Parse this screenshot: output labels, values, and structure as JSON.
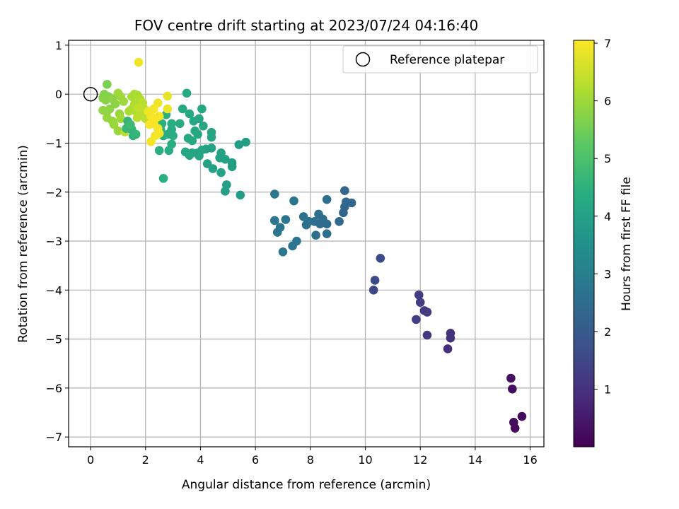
{
  "chart_data": {
    "type": "scatter",
    "title": "FOV centre drift starting at 2023/07/24 04:16:40",
    "xlabel": "Angular distance from reference (arcmin)",
    "ylabel": "Rotation from reference (arcmin)",
    "xlim": [
      -0.8,
      16.5
    ],
    "ylim": [
      -7.2,
      1.1
    ],
    "xticks": [
      0,
      2,
      4,
      6,
      8,
      10,
      12,
      14,
      16
    ],
    "yticks": [
      1,
      0,
      -1,
      -2,
      -3,
      -4,
      -5,
      -6,
      -7
    ],
    "xtick_labels": [
      "0",
      "2",
      "4",
      "6",
      "8",
      "10",
      "12",
      "14",
      "16"
    ],
    "ytick_labels": [
      "1",
      "0",
      "−1",
      "−2",
      "−3",
      "−4",
      "−5",
      "−6",
      "−7"
    ],
    "grid": true,
    "legend": {
      "placement": "top-right",
      "entries": [
        "Reference platepar"
      ]
    },
    "reference_point": {
      "x": 0,
      "y": 0
    },
    "colorbar": {
      "label": "Hours from first FF file",
      "colormap": "viridis",
      "range": [
        0,
        7.05
      ],
      "ticks": [
        1,
        2,
        3,
        4,
        5,
        6,
        7
      ],
      "tick_labels": [
        "1",
        "2",
        "3",
        "4",
        "5",
        "6",
        "7"
      ]
    },
    "points": [
      {
        "x": 15.3,
        "y": -5.8,
        "c": 0.3
      },
      {
        "x": 15.35,
        "y": -6.02,
        "c": 0.25
      },
      {
        "x": 15.4,
        "y": -6.7,
        "c": 0.2
      },
      {
        "x": 15.45,
        "y": -6.82,
        "c": 0.15
      },
      {
        "x": 15.7,
        "y": -6.58,
        "c": 0.18
      },
      {
        "x": 13.1,
        "y": -4.88,
        "c": 1.0
      },
      {
        "x": 13.1,
        "y": -4.98,
        "c": 1.0
      },
      {
        "x": 13.0,
        "y": -5.2,
        "c": 0.95
      },
      {
        "x": 11.95,
        "y": -4.1,
        "c": 1.25
      },
      {
        "x": 12.0,
        "y": -4.25,
        "c": 1.25
      },
      {
        "x": 12.15,
        "y": -4.42,
        "c": 1.2
      },
      {
        "x": 12.25,
        "y": -4.45,
        "c": 1.2
      },
      {
        "x": 11.85,
        "y": -4.6,
        "c": 1.3
      },
      {
        "x": 12.25,
        "y": -4.92,
        "c": 1.15
      },
      {
        "x": 10.55,
        "y": -3.35,
        "c": 1.6
      },
      {
        "x": 10.35,
        "y": -3.8,
        "c": 1.55
      },
      {
        "x": 10.3,
        "y": -4.0,
        "c": 1.5
      },
      {
        "x": 9.25,
        "y": -1.97,
        "c": 2.3
      },
      {
        "x": 9.3,
        "y": -2.2,
        "c": 2.3
      },
      {
        "x": 9.5,
        "y": -2.22,
        "c": 2.3
      },
      {
        "x": 9.25,
        "y": -2.3,
        "c": 2.35
      },
      {
        "x": 9.2,
        "y": -2.42,
        "c": 2.35
      },
      {
        "x": 9.05,
        "y": -2.6,
        "c": 2.4
      },
      {
        "x": 8.6,
        "y": -2.15,
        "c": 2.55
      },
      {
        "x": 8.3,
        "y": -2.45,
        "c": 2.55
      },
      {
        "x": 8.45,
        "y": -2.55,
        "c": 2.5
      },
      {
        "x": 8.15,
        "y": -2.6,
        "c": 2.55
      },
      {
        "x": 8.35,
        "y": -2.65,
        "c": 2.5
      },
      {
        "x": 8.6,
        "y": -2.65,
        "c": 2.5
      },
      {
        "x": 7.75,
        "y": -2.5,
        "c": 2.6
      },
      {
        "x": 7.85,
        "y": -2.67,
        "c": 2.6
      },
      {
        "x": 7.95,
        "y": -2.6,
        "c": 2.6
      },
      {
        "x": 8.2,
        "y": -2.88,
        "c": 2.6
      },
      {
        "x": 8.6,
        "y": -2.85,
        "c": 2.55
      },
      {
        "x": 7.4,
        "y": -2.18,
        "c": 2.7
      },
      {
        "x": 6.7,
        "y": -2.04,
        "c": 2.75
      },
      {
        "x": 6.7,
        "y": -2.58,
        "c": 2.75
      },
      {
        "x": 6.9,
        "y": -2.72,
        "c": 2.75
      },
      {
        "x": 7.1,
        "y": -2.56,
        "c": 2.75
      },
      {
        "x": 6.8,
        "y": -2.82,
        "c": 2.75
      },
      {
        "x": 7.0,
        "y": -3.22,
        "c": 2.8
      },
      {
        "x": 7.35,
        "y": -3.1,
        "c": 2.75
      },
      {
        "x": 7.5,
        "y": -3.0,
        "c": 2.75
      },
      {
        "x": 5.45,
        "y": -2.06,
        "c": 3.9
      },
      {
        "x": 5.65,
        "y": -0.98,
        "c": 3.9
      },
      {
        "x": 5.4,
        "y": -1.03,
        "c": 3.9
      },
      {
        "x": 5.15,
        "y": -1.4,
        "c": 3.95
      },
      {
        "x": 5.15,
        "y": -1.48,
        "c": 3.95
      },
      {
        "x": 4.95,
        "y": -1.85,
        "c": 3.95
      },
      {
        "x": 4.9,
        "y": -1.98,
        "c": 3.95
      },
      {
        "x": 4.75,
        "y": -1.2,
        "c": 4.0
      },
      {
        "x": 4.7,
        "y": -1.3,
        "c": 4.0
      },
      {
        "x": 4.9,
        "y": -1.33,
        "c": 4.0
      },
      {
        "x": 4.75,
        "y": -1.6,
        "c": 4.0
      },
      {
        "x": 4.45,
        "y": -1.52,
        "c": 4.0
      },
      {
        "x": 4.25,
        "y": -1.42,
        "c": 4.05
      },
      {
        "x": 4.4,
        "y": -1.1,
        "c": 4.05
      },
      {
        "x": 4.2,
        "y": -1.12,
        "c": 4.05
      },
      {
        "x": 4.05,
        "y": -1.14,
        "c": 4.1
      },
      {
        "x": 3.9,
        "y": -1.2,
        "c": 4.1
      },
      {
        "x": 3.95,
        "y": -1.26,
        "c": 4.1
      },
      {
        "x": 3.7,
        "y": -1.2,
        "c": 4.1
      },
      {
        "x": 3.6,
        "y": -1.25,
        "c": 4.15
      },
      {
        "x": 3.45,
        "y": -1.18,
        "c": 4.15
      },
      {
        "x": 4.4,
        "y": -0.78,
        "c": 4.1
      },
      {
        "x": 4.4,
        "y": -0.88,
        "c": 4.1
      },
      {
        "x": 4.1,
        "y": -0.65,
        "c": 4.15
      },
      {
        "x": 3.95,
        "y": -0.5,
        "c": 4.15
      },
      {
        "x": 4.05,
        "y": -0.3,
        "c": 4.2
      },
      {
        "x": 3.75,
        "y": -0.55,
        "c": 4.2
      },
      {
        "x": 3.6,
        "y": -0.4,
        "c": 4.2
      },
      {
        "x": 3.35,
        "y": -0.3,
        "c": 4.25
      },
      {
        "x": 3.5,
        "y": 0.02,
        "c": 4.25
      },
      {
        "x": 3.8,
        "y": -0.75,
        "c": 4.2
      },
      {
        "x": 3.9,
        "y": -0.82,
        "c": 4.2
      },
      {
        "x": 3.55,
        "y": -0.9,
        "c": 4.25
      },
      {
        "x": 3.7,
        "y": -0.95,
        "c": 4.25
      },
      {
        "x": 3.25,
        "y": -0.6,
        "c": 4.3
      },
      {
        "x": 2.95,
        "y": -0.6,
        "c": 4.35
      },
      {
        "x": 2.95,
        "y": -0.72,
        "c": 4.35
      },
      {
        "x": 2.8,
        "y": -0.82,
        "c": 4.35
      },
      {
        "x": 3.0,
        "y": -0.85,
        "c": 4.35
      },
      {
        "x": 2.65,
        "y": -0.85,
        "c": 4.35
      },
      {
        "x": 2.95,
        "y": -1.02,
        "c": 4.4
      },
      {
        "x": 2.85,
        "y": -1.15,
        "c": 4.4
      },
      {
        "x": 2.5,
        "y": -1.15,
        "c": 4.45
      },
      {
        "x": 2.65,
        "y": -1.72,
        "c": 4.4
      },
      {
        "x": 2.75,
        "y": -0.42,
        "c": 4.45
      },
      {
        "x": 2.6,
        "y": -0.6,
        "c": 4.45
      },
      {
        "x": 2.45,
        "y": -0.5,
        "c": 4.5
      },
      {
        "x": 2.55,
        "y": -0.72,
        "c": 4.5
      },
      {
        "x": 0.6,
        "y": 0.2,
        "c": 5.6
      },
      {
        "x": 0.5,
        "y": 0.0,
        "c": 5.7
      },
      {
        "x": 0.65,
        "y": -0.05,
        "c": 5.7
      },
      {
        "x": 0.45,
        "y": -0.08,
        "c": 5.75
      },
      {
        "x": 0.55,
        "y": -0.12,
        "c": 5.75
      },
      {
        "x": 0.8,
        "y": -0.1,
        "c": 5.8
      },
      {
        "x": 0.9,
        "y": -0.2,
        "c": 5.8
      },
      {
        "x": 0.7,
        "y": -0.3,
        "c": 5.8
      },
      {
        "x": 0.45,
        "y": -0.33,
        "c": 5.85
      },
      {
        "x": 0.6,
        "y": -0.35,
        "c": 5.85
      },
      {
        "x": 0.6,
        "y": -0.48,
        "c": 5.9
      },
      {
        "x": 0.8,
        "y": -0.55,
        "c": 5.9
      },
      {
        "x": 0.85,
        "y": -0.62,
        "c": 5.95
      },
      {
        "x": 1.0,
        "y": -0.75,
        "c": 5.95
      },
      {
        "x": 1.05,
        "y": -0.4,
        "c": 5.95
      },
      {
        "x": 1.0,
        "y": 0.02,
        "c": 6.0
      },
      {
        "x": 1.1,
        "y": -0.05,
        "c": 6.0
      },
      {
        "x": 1.2,
        "y": -0.15,
        "c": 6.0
      },
      {
        "x": 1.1,
        "y": -0.5,
        "c": 6.05
      },
      {
        "x": 1.25,
        "y": -0.77,
        "c": 6.3
      },
      {
        "x": 1.35,
        "y": -0.55,
        "c": 4.6
      },
      {
        "x": 1.3,
        "y": -0.7,
        "c": 4.7
      },
      {
        "x": 1.5,
        "y": -0.72,
        "c": 4.6
      },
      {
        "x": 1.55,
        "y": -0.85,
        "c": 4.55
      },
      {
        "x": 1.65,
        "y": -0.82,
        "c": 4.6
      },
      {
        "x": 1.45,
        "y": -0.62,
        "c": 4.8
      },
      {
        "x": 1.5,
        "y": -0.05,
        "c": 6.1
      },
      {
        "x": 1.6,
        "y": 0.0,
        "c": 6.1
      },
      {
        "x": 1.7,
        "y": -0.02,
        "c": 6.15
      },
      {
        "x": 1.8,
        "y": -0.1,
        "c": 6.2
      },
      {
        "x": 1.6,
        "y": -0.2,
        "c": 6.2
      },
      {
        "x": 1.5,
        "y": -0.3,
        "c": 6.2
      },
      {
        "x": 1.4,
        "y": -0.35,
        "c": 6.15
      },
      {
        "x": 1.65,
        "y": -0.35,
        "c": 6.25
      },
      {
        "x": 1.9,
        "y": -0.18,
        "c": 6.3
      },
      {
        "x": 1.95,
        "y": -0.3,
        "c": 6.3
      },
      {
        "x": 1.85,
        "y": -0.42,
        "c": 6.3
      },
      {
        "x": 2.0,
        "y": -0.5,
        "c": 6.35
      },
      {
        "x": 1.7,
        "y": -0.48,
        "c": 6.3
      },
      {
        "x": 1.75,
        "y": -0.28,
        "c": 6.4
      },
      {
        "x": 1.75,
        "y": 0.65,
        "c": 6.9
      },
      {
        "x": 2.8,
        "y": -0.04,
        "c": 6.8
      },
      {
        "x": 2.8,
        "y": -0.3,
        "c": 6.85
      },
      {
        "x": 2.45,
        "y": -0.18,
        "c": 6.9
      },
      {
        "x": 2.3,
        "y": -0.3,
        "c": 6.95
      },
      {
        "x": 2.2,
        "y": -0.45,
        "c": 7.0
      },
      {
        "x": 2.35,
        "y": -0.5,
        "c": 7.0
      },
      {
        "x": 2.5,
        "y": -0.45,
        "c": 7.0
      },
      {
        "x": 2.3,
        "y": -0.6,
        "c": 7.0
      },
      {
        "x": 2.45,
        "y": -0.7,
        "c": 7.0
      },
      {
        "x": 2.5,
        "y": -0.8,
        "c": 6.95
      },
      {
        "x": 2.35,
        "y": -0.85,
        "c": 6.95
      },
      {
        "x": 2.2,
        "y": -0.97,
        "c": 6.95
      },
      {
        "x": 2.1,
        "y": -0.35,
        "c": 6.9
      },
      {
        "x": 2.15,
        "y": -0.62,
        "c": 7.0
      }
    ]
  }
}
